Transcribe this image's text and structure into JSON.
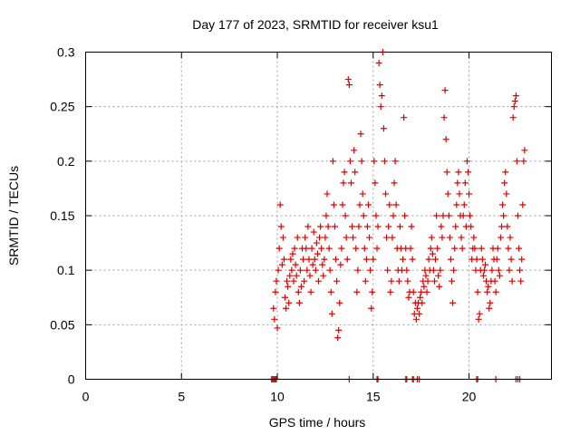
{
  "chart_data": {
    "type": "scatter",
    "title": "Day 177 of 2023, SRMTID for receiver ksu1",
    "xlabel": "GPS time / hours",
    "ylabel": "SRMTID / TECUs",
    "xlim": [
      0,
      24.3
    ],
    "ylim": [
      0,
      0.3
    ],
    "xticks": [
      0,
      5,
      10,
      15,
      20
    ],
    "xtick_labels": [
      "0",
      "5",
      "10",
      "15",
      "20"
    ],
    "yticks": [
      0,
      0.05,
      0.1,
      0.15,
      0.2,
      0.25,
      0.3
    ],
    "ytick_labels": [
      "0",
      "0.05",
      "0.1",
      "0.15",
      "0.2",
      "0.25",
      "0.3"
    ],
    "grid": true,
    "marker": "+",
    "color": "#e00000",
    "series": [
      {
        "name": "ksu1",
        "points": [
          [
            9.8,
            0.065
          ],
          [
            9.85,
            0.055
          ],
          [
            9.9,
            0.08
          ],
          [
            9.95,
            0.09
          ],
          [
            10.0,
            0.047
          ],
          [
            10.05,
            0.1
          ],
          [
            10.1,
            0.12
          ],
          [
            10.15,
            0.16
          ],
          [
            10.2,
            0.14
          ],
          [
            10.25,
            0.105
          ],
          [
            10.3,
            0.13
          ],
          [
            10.35,
            0.11
          ],
          [
            10.4,
            0.075
          ],
          [
            10.45,
            0.065
          ],
          [
            10.5,
            0.09
          ],
          [
            10.55,
            0.085
          ],
          [
            10.6,
            0.07
          ],
          [
            10.65,
            0.095
          ],
          [
            10.7,
            0.11
          ],
          [
            10.75,
            0.1
          ],
          [
            10.8,
            0.115
          ],
          [
            10.85,
            0.09
          ],
          [
            10.9,
            0.12
          ],
          [
            10.95,
            0.105
          ],
          [
            11.0,
            0.095
          ],
          [
            11.05,
            0.13
          ],
          [
            11.1,
            0.08
          ],
          [
            11.15,
            0.07
          ],
          [
            11.2,
            0.1
          ],
          [
            11.25,
            0.085
          ],
          [
            11.3,
            0.12
          ],
          [
            11.35,
            0.11
          ],
          [
            11.4,
            0.09
          ],
          [
            11.45,
            0.13
          ],
          [
            11.5,
            0.12
          ],
          [
            11.55,
            0.1
          ],
          [
            11.6,
            0.14
          ],
          [
            11.65,
            0.11
          ],
          [
            11.7,
            0.095
          ],
          [
            11.75,
            0.08
          ],
          [
            11.8,
            0.12
          ],
          [
            11.85,
            0.105
          ],
          [
            11.9,
            0.135
          ],
          [
            11.95,
            0.11
          ],
          [
            12.0,
            0.1
          ],
          [
            12.05,
            0.125
          ],
          [
            12.1,
            0.115
          ],
          [
            12.15,
            0.09
          ],
          [
            12.2,
            0.13
          ],
          [
            12.25,
            0.14
          ],
          [
            12.3,
            0.12
          ],
          [
            12.35,
            0.105
          ],
          [
            12.4,
            0.095
          ],
          [
            12.45,
            0.11
          ],
          [
            12.5,
            0.13
          ],
          [
            12.55,
            0.15
          ],
          [
            12.6,
            0.17
          ],
          [
            12.65,
            0.14
          ],
          [
            12.7,
            0.12
          ],
          [
            12.75,
            0.1
          ],
          [
            12.8,
            0.08
          ],
          [
            12.85,
            0.06
          ],
          [
            12.9,
            0.2
          ],
          [
            12.95,
            0.16
          ],
          [
            13.0,
            0.14
          ],
          [
            13.05,
            0.11
          ],
          [
            13.1,
            0.09
          ],
          [
            13.15,
            0.038
          ],
          [
            13.2,
            0.045
          ],
          [
            13.25,
            0.07
          ],
          [
            13.3,
            0.105
          ],
          [
            13.35,
            0.12
          ],
          [
            13.4,
            0.16
          ],
          [
            13.45,
            0.18
          ],
          [
            13.5,
            0.19
          ],
          [
            13.55,
            0.15
          ],
          [
            13.6,
            0.13
          ],
          [
            13.65,
            0.11
          ],
          [
            13.7,
            0.275
          ],
          [
            13.75,
            0.27
          ],
          [
            13.8,
            0.2
          ],
          [
            13.85,
            0.18
          ],
          [
            13.9,
            0.14
          ],
          [
            13.95,
            0.13
          ],
          [
            14.0,
            0.21
          ],
          [
            14.05,
            0.19
          ],
          [
            14.1,
            0.12
          ],
          [
            14.15,
            0.08
          ],
          [
            14.2,
            0.1
          ],
          [
            14.25,
            0.14
          ],
          [
            14.3,
            0.16
          ],
          [
            14.35,
            0.225
          ],
          [
            14.4,
            0.2
          ],
          [
            14.45,
            0.17
          ],
          [
            14.5,
            0.15
          ],
          [
            14.55,
            0.12
          ],
          [
            14.6,
            0.09
          ],
          [
            14.65,
            0.11
          ],
          [
            14.7,
            0.14
          ],
          [
            14.75,
            0.16
          ],
          [
            14.8,
            0.13
          ],
          [
            14.85,
            0.1
          ],
          [
            14.9,
            0.065
          ],
          [
            14.95,
            0.08
          ],
          [
            15.0,
            0.11
          ],
          [
            15.05,
            0.2
          ],
          [
            15.1,
            0.18
          ],
          [
            15.15,
            0.15
          ],
          [
            15.2,
            0.12
          ],
          [
            15.25,
            0.14
          ],
          [
            15.3,
            0.29
          ],
          [
            15.35,
            0.27
          ],
          [
            15.4,
            0.25
          ],
          [
            15.45,
            0.26
          ],
          [
            15.5,
            0.3
          ],
          [
            15.55,
            0.23
          ],
          [
            15.6,
            0.2
          ],
          [
            15.65,
            0.17
          ],
          [
            15.7,
            0.13
          ],
          [
            15.75,
            0.1
          ],
          [
            15.8,
            0.14
          ],
          [
            15.85,
            0.16
          ],
          [
            15.9,
            0.08
          ],
          [
            15.95,
            0.09
          ],
          [
            16.0,
            0.13
          ],
          [
            16.05,
            0.15
          ],
          [
            16.1,
            0.18
          ],
          [
            16.15,
            0.2
          ],
          [
            16.2,
            0.16
          ],
          [
            16.25,
            0.12
          ],
          [
            16.3,
            0.1
          ],
          [
            16.35,
            0.09
          ],
          [
            16.4,
            0.14
          ],
          [
            16.45,
            0.12
          ],
          [
            16.5,
            0.1
          ],
          [
            16.55,
            0.11
          ],
          [
            16.6,
            0.24
          ],
          [
            16.65,
            0.15
          ],
          [
            16.7,
            0.12
          ],
          [
            16.75,
            0.1
          ],
          [
            16.8,
            0.09
          ],
          [
            16.85,
            0.075
          ],
          [
            16.9,
            0.08
          ],
          [
            16.95,
            0.12
          ],
          [
            17.0,
            0.14
          ],
          [
            17.05,
            0.11
          ],
          [
            17.1,
            0.08
          ],
          [
            17.15,
            0.06
          ],
          [
            17.2,
            0.07
          ],
          [
            17.25,
            0.055
          ],
          [
            17.3,
            0.065
          ],
          [
            17.35,
            0.07
          ],
          [
            17.4,
            0.06
          ],
          [
            17.45,
            0.075
          ],
          [
            17.5,
            0.08
          ],
          [
            17.55,
            0.07
          ],
          [
            17.6,
            0.09
          ],
          [
            17.65,
            0.085
          ],
          [
            17.7,
            0.1
          ],
          [
            17.75,
            0.095
          ],
          [
            17.8,
            0.08
          ],
          [
            17.85,
            0.09
          ],
          [
            17.9,
            0.11
          ],
          [
            17.95,
            0.1
          ],
          [
            18.0,
            0.12
          ],
          [
            18.05,
            0.13
          ],
          [
            18.1,
            0.115
          ],
          [
            18.15,
            0.1
          ],
          [
            18.2,
            0.09
          ],
          [
            18.25,
            0.11
          ],
          [
            18.3,
            0.15
          ],
          [
            18.35,
            0.12
          ],
          [
            18.4,
            0.095
          ],
          [
            18.45,
            0.085
          ],
          [
            18.5,
            0.1
          ],
          [
            18.55,
            0.14
          ],
          [
            18.6,
            0.13
          ],
          [
            18.65,
            0.15
          ],
          [
            18.7,
            0.24
          ],
          [
            18.75,
            0.265
          ],
          [
            18.8,
            0.22
          ],
          [
            18.85,
            0.19
          ],
          [
            18.9,
            0.17
          ],
          [
            18.95,
            0.15
          ],
          [
            19.0,
            0.13
          ],
          [
            19.05,
            0.11
          ],
          [
            19.1,
            0.09
          ],
          [
            19.15,
            0.07
          ],
          [
            19.2,
            0.1
          ],
          [
            19.25,
            0.12
          ],
          [
            19.3,
            0.14
          ],
          [
            19.35,
            0.16
          ],
          [
            19.4,
            0.18
          ],
          [
            19.45,
            0.19
          ],
          [
            19.5,
            0.17
          ],
          [
            19.55,
            0.15
          ],
          [
            19.6,
            0.13
          ],
          [
            19.65,
            0.12
          ],
          [
            19.7,
            0.15
          ],
          [
            19.75,
            0.16
          ],
          [
            19.8,
            0.18
          ],
          [
            19.85,
            0.14
          ],
          [
            19.9,
            0.2
          ],
          [
            19.95,
            0.19
          ],
          [
            20.0,
            0.17
          ],
          [
            20.05,
            0.15
          ],
          [
            20.1,
            0.14
          ],
          [
            20.15,
            0.11
          ],
          [
            20.2,
            0.12
          ],
          [
            20.25,
            0.13
          ],
          [
            20.3,
            0.12
          ],
          [
            20.35,
            0.1
          ],
          [
            20.4,
            0.11
          ],
          [
            20.45,
            0.08
          ],
          [
            20.5,
            0.055
          ],
          [
            20.55,
            0.06
          ],
          [
            20.6,
            0.1
          ],
          [
            20.65,
            0.12
          ],
          [
            20.7,
            0.11
          ],
          [
            20.75,
            0.095
          ],
          [
            20.8,
            0.1
          ],
          [
            20.85,
            0.105
          ],
          [
            20.9,
            0.09
          ],
          [
            20.95,
            0.08
          ],
          [
            21.0,
            0.085
          ],
          [
            21.05,
            0.065
          ],
          [
            21.1,
            0.07
          ],
          [
            21.15,
            0.09
          ],
          [
            21.2,
            0.1
          ],
          [
            21.25,
            0.12
          ],
          [
            21.3,
            0.11
          ],
          [
            21.35,
            0.09
          ],
          [
            21.4,
            0.08
          ],
          [
            21.45,
            0.11
          ],
          [
            21.5,
            0.12
          ],
          [
            21.55,
            0.1
          ],
          [
            21.6,
            0.095
          ],
          [
            21.65,
            0.13
          ],
          [
            21.7,
            0.14
          ],
          [
            21.75,
            0.16
          ],
          [
            21.8,
            0.15
          ],
          [
            21.85,
            0.18
          ],
          [
            21.9,
            0.19
          ],
          [
            21.95,
            0.17
          ],
          [
            22.0,
            0.14
          ],
          [
            22.05,
            0.12
          ],
          [
            22.1,
            0.1
          ],
          [
            22.15,
            0.13
          ],
          [
            22.2,
            0.11
          ],
          [
            22.25,
            0.09
          ],
          [
            22.3,
            0.24
          ],
          [
            22.35,
            0.25
          ],
          [
            22.4,
            0.255
          ],
          [
            22.45,
            0.26
          ],
          [
            22.5,
            0.2
          ],
          [
            22.55,
            0.15
          ],
          [
            22.6,
            0.12
          ],
          [
            22.65,
            0.1
          ],
          [
            22.7,
            0.09
          ],
          [
            22.75,
            0.11
          ],
          [
            22.8,
            0.16
          ],
          [
            22.85,
            0.2
          ],
          [
            22.9,
            0.21
          ]
        ]
      }
    ],
    "zero_points": [
      9.7,
      9.75,
      9.8,
      9.85,
      9.9,
      9.95,
      13.75,
      15.2,
      15.25,
      16.7,
      16.75,
      17.05,
      17.1,
      17.3,
      17.4,
      20.4,
      20.45,
      21.4,
      22.45,
      22.55,
      22.65
    ]
  }
}
